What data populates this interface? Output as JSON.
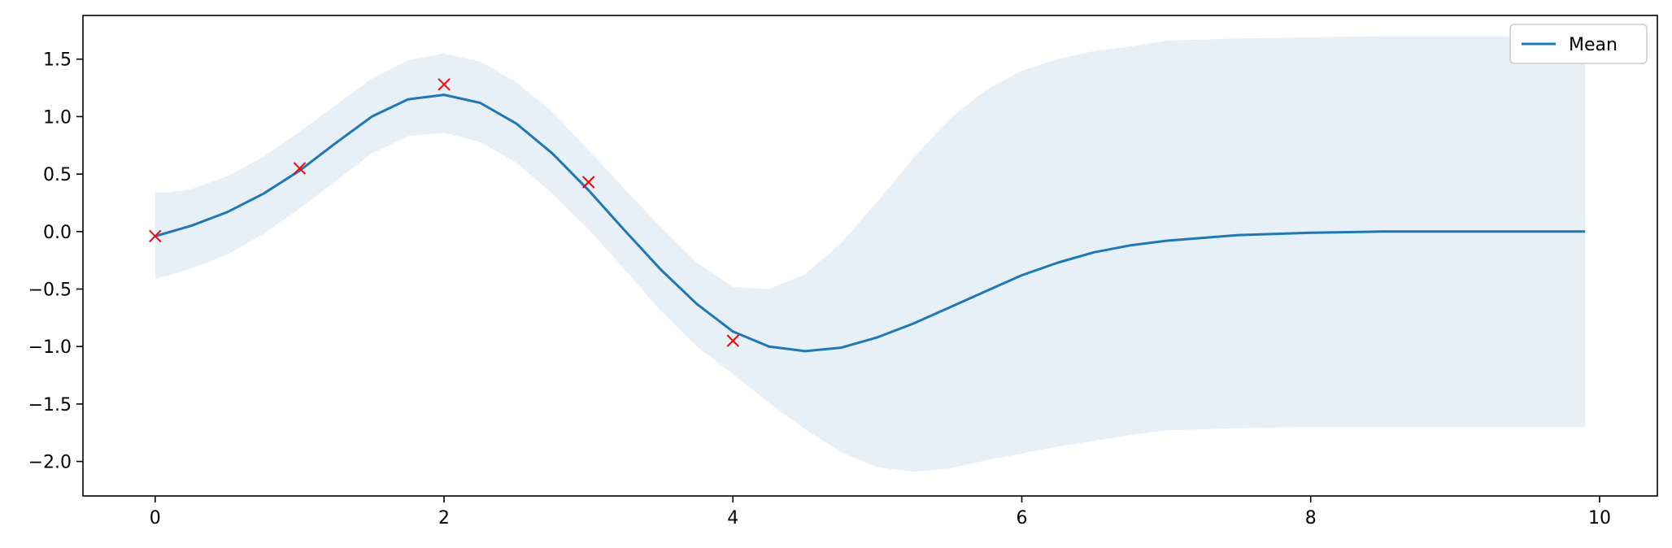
{
  "chart_data": {
    "type": "line",
    "title": "",
    "xlabel": "",
    "ylabel": "",
    "xlim": [
      -0.5,
      10.4
    ],
    "ylim": [
      -2.3,
      1.88
    ],
    "xticks": [
      0,
      2,
      4,
      6,
      8,
      10
    ],
    "xtick_labels": [
      "0",
      "2",
      "4",
      "6",
      "8",
      "10"
    ],
    "yticks": [
      -2.0,
      -1.5,
      -1.0,
      -0.5,
      0.0,
      0.5,
      1.0,
      1.5
    ],
    "ytick_labels": [
      "−2.0",
      "−1.5",
      "−1.0",
      "−0.5",
      "0.0",
      "0.5",
      "1.0",
      "1.5"
    ],
    "grid": false,
    "legend": {
      "position": "top-right",
      "entries": [
        "Mean"
      ]
    },
    "colors": {
      "mean": "#1f77b4",
      "band": "#e7eff7",
      "observations": "#ff0000"
    },
    "series": [
      {
        "name": "Mean",
        "kind": "line",
        "x": [
          0,
          0.25,
          0.5,
          0.75,
          1.0,
          1.25,
          1.5,
          1.75,
          2.0,
          2.25,
          2.5,
          2.75,
          3.0,
          3.25,
          3.5,
          3.75,
          4.0,
          4.25,
          4.5,
          4.75,
          5.0,
          5.25,
          5.5,
          5.75,
          6.0,
          6.25,
          6.5,
          6.75,
          7.0,
          7.5,
          8.0,
          8.5,
          9.0,
          9.5,
          9.9
        ],
        "y": [
          -0.04,
          0.05,
          0.17,
          0.33,
          0.53,
          0.77,
          1.0,
          1.15,
          1.19,
          1.12,
          0.94,
          0.68,
          0.36,
          0.01,
          -0.33,
          -0.63,
          -0.87,
          -1.0,
          -1.04,
          -1.01,
          -0.92,
          -0.8,
          -0.66,
          -0.52,
          -0.38,
          -0.27,
          -0.18,
          -0.12,
          -0.08,
          -0.03,
          -0.01,
          0.0,
          0.0,
          0.0,
          0.0
        ]
      },
      {
        "name": "",
        "kind": "band",
        "x": [
          0,
          0.1,
          0.25,
          0.5,
          0.75,
          1.0,
          1.25,
          1.5,
          1.75,
          2.0,
          2.25,
          2.5,
          2.75,
          3.0,
          3.25,
          3.5,
          3.75,
          4.0,
          4.25,
          4.5,
          4.75,
          5.0,
          5.25,
          5.5,
          5.75,
          6.0,
          6.25,
          6.5,
          6.75,
          7.0,
          7.5,
          8.0,
          8.5,
          9.0,
          9.5,
          9.9
        ],
        "upper": [
          0.34,
          0.34,
          0.37,
          0.48,
          0.65,
          0.87,
          1.1,
          1.33,
          1.49,
          1.55,
          1.48,
          1.3,
          1.04,
          0.71,
          0.37,
          0.04,
          -0.27,
          -0.48,
          -0.5,
          -0.37,
          -0.1,
          0.26,
          0.64,
          0.98,
          1.23,
          1.4,
          1.5,
          1.57,
          1.61,
          1.66,
          1.68,
          1.69,
          1.7,
          1.7,
          1.7,
          1.7
        ],
        "lower": [
          -0.41,
          -0.38,
          -0.32,
          -0.2,
          -0.02,
          0.2,
          0.44,
          0.68,
          0.83,
          0.86,
          0.78,
          0.6,
          0.33,
          0.02,
          -0.33,
          -0.69,
          -1.0,
          -1.24,
          -1.49,
          -1.72,
          -1.92,
          -2.05,
          -2.09,
          -2.06,
          -1.99,
          -1.93,
          -1.87,
          -1.82,
          -1.77,
          -1.73,
          -1.71,
          -1.7,
          -1.7,
          -1.7,
          -1.7,
          -1.7
        ]
      },
      {
        "name": "",
        "kind": "scatter",
        "marker": "x",
        "x": [
          0,
          1,
          2,
          3,
          4
        ],
        "y": [
          -0.04,
          0.55,
          1.28,
          0.43,
          -0.95
        ]
      }
    ]
  }
}
